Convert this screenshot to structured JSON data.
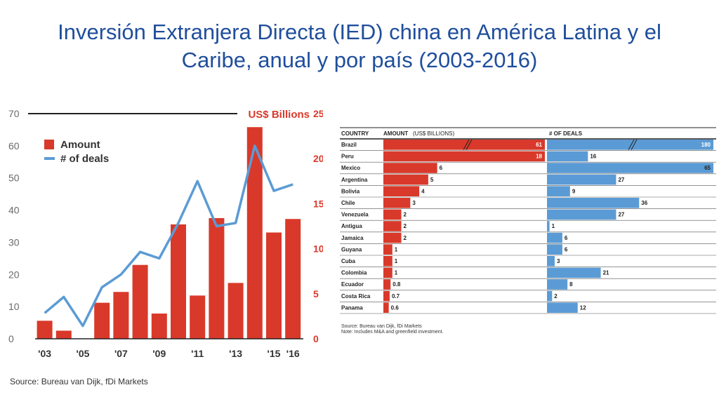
{
  "slide": {
    "title_line1": "Inversión Extranjera Directa (IED) china en América Latina y el",
    "title_line2": "Caribe, anual y por país (2003-2016)"
  },
  "colors": {
    "bar": "#d9392a",
    "line": "#5b9bd5",
    "title": "#1f4e9c"
  },
  "chart_data": [
    {
      "type": "bar",
      "combo": "bar+line",
      "unit_label": "US$ Billions",
      "legend": [
        {
          "name": "Amount",
          "marker": "bar"
        },
        {
          "name": "# of deals",
          "marker": "line"
        }
      ],
      "legend_position": "top-left",
      "x": [
        "2003",
        "2004",
        "2005",
        "2006",
        "2007",
        "2008",
        "2009",
        "2010",
        "2011",
        "2012",
        "2013",
        "2014",
        "2015",
        "2016"
      ],
      "x_tick_labels": [
        {
          "year": "2003",
          "label": "'03"
        },
        {
          "year": "2005",
          "label": "'05"
        },
        {
          "year": "2007",
          "label": "'07"
        },
        {
          "year": "2009",
          "label": "'09"
        },
        {
          "year": "2011",
          "label": "'11"
        },
        {
          "year": "2013",
          "label": "'13"
        },
        {
          "year": "2015",
          "label": "'15"
        },
        {
          "year": "2016",
          "label": "'16"
        }
      ],
      "series": [
        {
          "name": "Amount",
          "axis": "right",
          "type": "bar",
          "values": [
            2.0,
            0.9,
            0,
            4.0,
            5.2,
            8.2,
            2.8,
            12.7,
            4.8,
            13.4,
            6.2,
            23.5,
            11.8,
            13.3
          ]
        },
        {
          "name": "# of deals",
          "axis": "left",
          "type": "line",
          "values": [
            8,
            13,
            4,
            16,
            20,
            27,
            25,
            36,
            49,
            35,
            36,
            60,
            46,
            48
          ]
        }
      ],
      "left_axis": {
        "ticks": [
          "0",
          "10",
          "20",
          "30",
          "40",
          "50",
          "60",
          "70"
        ],
        "ylim": [
          0,
          70
        ]
      },
      "right_axis": {
        "ticks": [
          "0",
          "5",
          "10",
          "15",
          "20",
          "25"
        ],
        "ylim": [
          0,
          25
        ]
      },
      "source": "Source: Bureau van Dijk, fDi Markets"
    },
    {
      "type": "bar",
      "orientation": "horizontal",
      "headers": {
        "country": "COUNTRY",
        "amount": "AMOUNT",
        "amount_unit": "(US$ BILLIONS)",
        "deals": "# OF DEALS"
      },
      "rows": [
        {
          "country": "Brazil",
          "amount": 61,
          "amount_label": "61",
          "deals": 180,
          "deals_label": "180",
          "truncated": true
        },
        {
          "country": "Peru",
          "amount": 18,
          "amount_label": "18",
          "deals": 16,
          "deals_label": "16"
        },
        {
          "country": "Mexico",
          "amount": 6,
          "amount_label": "6",
          "deals": 65,
          "deals_label": "65"
        },
        {
          "country": "Argentina",
          "amount": 5,
          "amount_label": "5",
          "deals": 27,
          "deals_label": "27"
        },
        {
          "country": "Bolivia",
          "amount": 4,
          "amount_label": "4",
          "deals": 9,
          "deals_label": "9"
        },
        {
          "country": "Chile",
          "amount": 3,
          "amount_label": "3",
          "deals": 36,
          "deals_label": "36"
        },
        {
          "country": "Venezuela",
          "amount": 2,
          "amount_label": "2",
          "deals": 27,
          "deals_label": "27"
        },
        {
          "country": "Antigua",
          "amount": 2,
          "amount_label": "2",
          "deals": 1,
          "deals_label": "1"
        },
        {
          "country": "Jamaica",
          "amount": 2,
          "amount_label": "2",
          "deals": 6,
          "deals_label": "6"
        },
        {
          "country": "Guyana",
          "amount": 1,
          "amount_label": "1",
          "deals": 6,
          "deals_label": "6"
        },
        {
          "country": "Cuba",
          "amount": 1,
          "amount_label": "1",
          "deals": 3,
          "deals_label": "3"
        },
        {
          "country": "Colombia",
          "amount": 1,
          "amount_label": "1",
          "deals": 21,
          "deals_label": "21"
        },
        {
          "country": "Ecuador",
          "amount": 0.8,
          "amount_label": "0.8",
          "deals": 8,
          "deals_label": "8"
        },
        {
          "country": "Costa Rica",
          "amount": 0.7,
          "amount_label": "0.7",
          "deals": 2,
          "deals_label": "2"
        },
        {
          "country": "Panama",
          "amount": 0.6,
          "amount_label": "0.6",
          "deals": 12,
          "deals_label": "12"
        }
      ],
      "source_line1": "Source: Bureau van Dijk, fDi Markets",
      "source_line2": "Note: Includes M&A and greenfield investment."
    }
  ]
}
